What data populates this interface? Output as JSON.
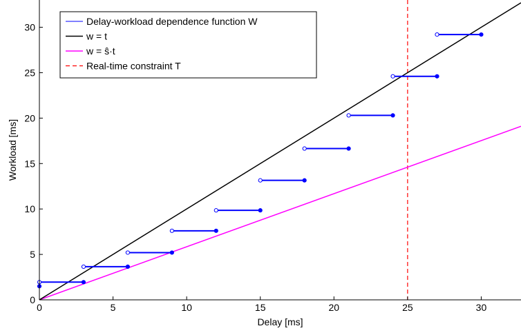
{
  "chart_data": {
    "type": "line",
    "xlabel": "Delay [ms]",
    "ylabel": "Workload [ms]",
    "xlim": [
      0,
      32.7
    ],
    "ylim": [
      0,
      33
    ],
    "xticks": [
      "0",
      "5",
      "10",
      "15",
      "20",
      "25",
      "30"
    ],
    "yticks": [
      "0",
      "5",
      "10",
      "15",
      "20",
      "25",
      "30"
    ],
    "grid": false,
    "legend_position": "top-left",
    "legend": [
      "Delay-workload dependence function W",
      "w = t",
      "w = ŝ·t",
      "Real-time constraint T"
    ],
    "series": [
      {
        "name": "Delay-workload dependence function W",
        "color": "#0000ff",
        "style": "step",
        "segments": [
          {
            "x0": 0,
            "x1": 3,
            "y": 1.95
          },
          {
            "x0": 3,
            "x1": 6,
            "y": 3.65
          },
          {
            "x0": 6,
            "x1": 9,
            "y": 5.2
          },
          {
            "x0": 9,
            "x1": 12,
            "y": 7.6
          },
          {
            "x0": 12,
            "x1": 15,
            "y": 9.85
          },
          {
            "x0": 15,
            "x1": 18,
            "y": 13.15
          },
          {
            "x0": 18,
            "x1": 21,
            "y": 16.65
          },
          {
            "x0": 21,
            "x1": 24,
            "y": 20.3
          },
          {
            "x0": 24,
            "x1": 27,
            "y": 24.6
          },
          {
            "x0": 27,
            "x1": 30,
            "y": 29.2
          }
        ],
        "initial_point": {
          "x": 0,
          "y": 1.5
        }
      },
      {
        "name": "w = t",
        "color": "#000000",
        "x": [
          0,
          32.7
        ],
        "y": [
          0,
          32.7
        ]
      },
      {
        "name": "w = ŝ·t",
        "color": "#ff00ff",
        "x": [
          0,
          32.7
        ],
        "y": [
          0,
          19.1
        ]
      },
      {
        "name": "Real-time constraint T",
        "color": "#ff0000",
        "style": "dashed-vertical",
        "x": 25
      }
    ]
  }
}
